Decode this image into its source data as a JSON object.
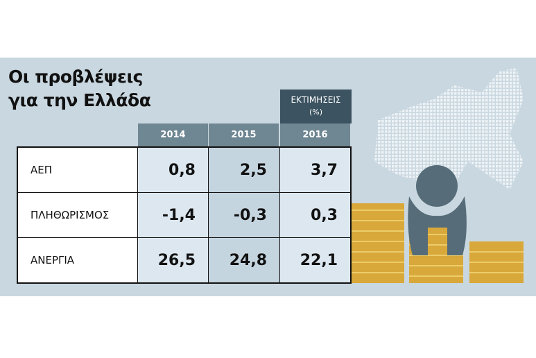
{
  "header": {
    "title": [
      "Οι προβλέψεις",
      "για την Ελλάδα"
    ],
    "estimate_label": [
      "ΕΚΤΙΜΗΣΕΙΣ",
      "(%)"
    ]
  },
  "table": {
    "columns": [
      "2014",
      "2015",
      "2016"
    ],
    "rows": [
      [
        "ΑΕΠ",
        "0,8",
        "2,5",
        "3,7"
      ],
      [
        "ΠΛΗΘΩΡΙΣΜΟΣ",
        "-1,4",
        "-0,3",
        "0,3"
      ],
      [
        "ΑΝΕΡΓΙΑ",
        "26,5",
        "24,8",
        "22,1"
      ]
    ]
  }
}
